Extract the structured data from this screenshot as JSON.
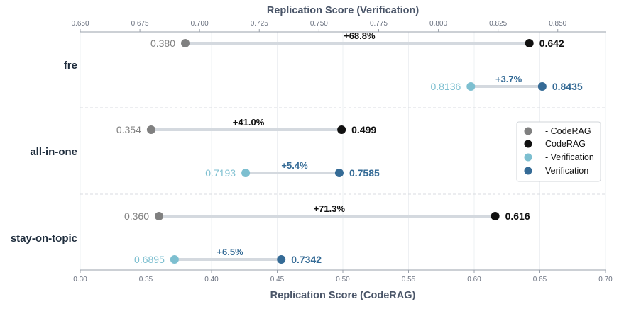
{
  "chart_data": {
    "type": "dumbbell",
    "bottom_axis": {
      "title": "Replication Score (CodeRAG)",
      "range": [
        0.3,
        0.7
      ],
      "ticks": [
        0.3,
        0.35,
        0.4,
        0.45,
        0.5,
        0.55,
        0.6,
        0.65,
        0.7
      ],
      "tick_labels": [
        "0.30",
        "0.35",
        "0.40",
        "0.45",
        "0.50",
        "0.55",
        "0.60",
        "0.65",
        "0.70"
      ]
    },
    "top_axis": {
      "title": "Replication Score (Verification)",
      "range": [
        0.65,
        0.87
      ],
      "ticks": [
        0.65,
        0.675,
        0.7,
        0.725,
        0.75,
        0.775,
        0.8,
        0.825,
        0.85
      ],
      "tick_labels": [
        "0.650",
        "0.675",
        "0.700",
        "0.725",
        "0.750",
        "0.775",
        "0.800",
        "0.825",
        "0.850"
      ]
    },
    "grid": true,
    "categories": [
      "fre",
      "all-in-one",
      "stay-on-topic"
    ],
    "coderag": [
      {
        "category": "fre",
        "without": 0.38,
        "with": 0.642,
        "without_label": "0.380",
        "with_label": "0.642",
        "change_label": "+68.8%"
      },
      {
        "category": "all-in-one",
        "without": 0.354,
        "with": 0.499,
        "without_label": "0.354",
        "with_label": "0.499",
        "change_label": "+41.0%"
      },
      {
        "category": "stay-on-topic",
        "without": 0.36,
        "with": 0.616,
        "without_label": "0.360",
        "with_label": "0.616",
        "change_label": "+71.3%"
      }
    ],
    "verification": [
      {
        "category": "fre",
        "without": 0.8136,
        "with": 0.8435,
        "without_label": "0.8136",
        "with_label": "0.8435",
        "change_label": "+3.7%"
      },
      {
        "category": "all-in-one",
        "without": 0.7193,
        "with": 0.7585,
        "without_label": "0.7193",
        "with_label": "0.7585",
        "change_label": "+5.4%"
      },
      {
        "category": "stay-on-topic",
        "without": 0.6895,
        "with": 0.7342,
        "without_label": "0.6895",
        "with_label": "0.7342",
        "change_label": "+6.5%"
      }
    ],
    "legend": {
      "placement": "right",
      "items": [
        {
          "label": "- CodeRAG",
          "color": "#808080"
        },
        {
          "label": "CodeRAG",
          "color": "#111111"
        },
        {
          "label": "- Verification",
          "color": "#7dbfd0"
        },
        {
          "label": "Verification",
          "color": "#356b96"
        }
      ]
    },
    "colors": {
      "coderag_without": "#808080",
      "coderag_with": "#111111",
      "verification_without": "#7dbfd0",
      "verification_with": "#356b96",
      "connector": "#d4d9df",
      "grid": "#eef0f3",
      "separator": "#d8dbe0"
    }
  }
}
